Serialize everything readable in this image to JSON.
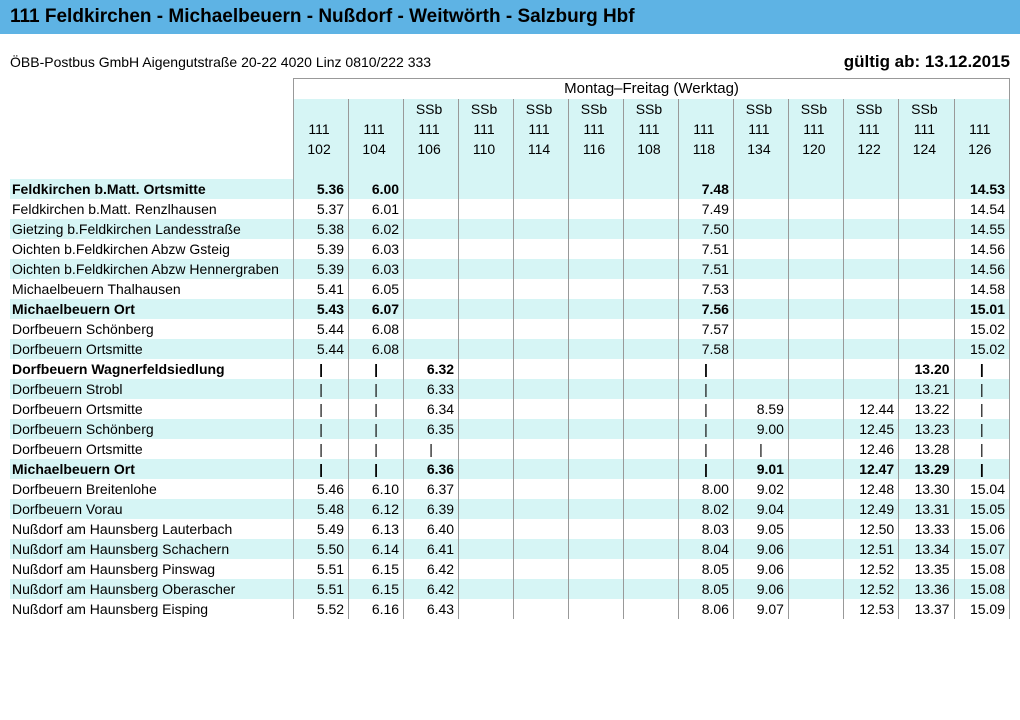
{
  "colors": {
    "header_bar": "#5eb3e4",
    "row_stripe": "#d6f5f5",
    "border": "#999999",
    "background": "#ffffff"
  },
  "header": {
    "title": "111 Feldkirchen - Michaelbeuern - Nußdorf - Weitwörth - Salzburg Hbf",
    "operator": "ÖBB-Postbus GmbH Aigengutstraße 20-22 4020 Linz 0810/222 333",
    "valid_from": "gültig ab: 13.12.2015",
    "days": "Montag–Freitag (Werktag)"
  },
  "columns": {
    "ssb": [
      "",
      "",
      "SSb",
      "SSb",
      "SSb",
      "SSb",
      "SSb",
      "",
      "SSb",
      "SSb",
      "SSb",
      "SSb",
      ""
    ],
    "route": [
      "111",
      "111",
      "111",
      "111",
      "111",
      "111",
      "111",
      "111",
      "111",
      "111",
      "111",
      "111",
      "111"
    ],
    "course": [
      "102",
      "104",
      "106",
      "110",
      "114",
      "116",
      "108",
      "118",
      "134",
      "120",
      "122",
      "124",
      "126"
    ]
  },
  "stops": [
    {
      "name": "Feldkirchen b.Matt. Ortsmitte",
      "bold": true,
      "t": [
        "5.36",
        "6.00",
        "",
        "",
        "",
        "",
        "",
        "7.48",
        "",
        "",
        "",
        "",
        "14.53"
      ]
    },
    {
      "name": "Feldkirchen b.Matt. Renzlhausen",
      "bold": false,
      "t": [
        "5.37",
        "6.01",
        "",
        "",
        "",
        "",
        "",
        "7.49",
        "",
        "",
        "",
        "",
        "14.54"
      ]
    },
    {
      "name": "Gietzing b.Feldkirchen Landesstraße",
      "bold": false,
      "t": [
        "5.38",
        "6.02",
        "",
        "",
        "",
        "",
        "",
        "7.50",
        "",
        "",
        "",
        "",
        "14.55"
      ]
    },
    {
      "name": "Oichten b.Feldkirchen Abzw Gsteig",
      "bold": false,
      "t": [
        "5.39",
        "6.03",
        "",
        "",
        "",
        "",
        "",
        "7.51",
        "",
        "",
        "",
        "",
        "14.56"
      ]
    },
    {
      "name": "Oichten b.Feldkirchen Abzw Hennergraben",
      "bold": false,
      "t": [
        "5.39",
        "6.03",
        "",
        "",
        "",
        "",
        "",
        "7.51",
        "",
        "",
        "",
        "",
        "14.56"
      ]
    },
    {
      "name": "Michaelbeuern Thalhausen",
      "bold": false,
      "t": [
        "5.41",
        "6.05",
        "",
        "",
        "",
        "",
        "",
        "7.53",
        "",
        "",
        "",
        "",
        "14.58"
      ]
    },
    {
      "name": "Michaelbeuern Ort",
      "bold": true,
      "t": [
        "5.43",
        "6.07",
        "",
        "",
        "",
        "",
        "",
        "7.56",
        "",
        "",
        "",
        "",
        "15.01"
      ]
    },
    {
      "name": "Dorfbeuern Schönberg",
      "bold": false,
      "t": [
        "5.44",
        "6.08",
        "",
        "",
        "",
        "",
        "",
        "7.57",
        "",
        "",
        "",
        "",
        "15.02"
      ]
    },
    {
      "name": "Dorfbeuern Ortsmitte",
      "bold": false,
      "t": [
        "5.44",
        "6.08",
        "",
        "",
        "",
        "",
        "",
        "7.58",
        "",
        "",
        "",
        "",
        "15.02"
      ]
    },
    {
      "name": "Dorfbeuern Wagnerfeldsiedlung",
      "bold": true,
      "t": [
        "|",
        "|",
        "6.32",
        "",
        "",
        "",
        "",
        "|",
        "",
        "",
        "",
        "13.20",
        "|"
      ]
    },
    {
      "name": "Dorfbeuern Strobl",
      "bold": false,
      "t": [
        "|",
        "|",
        "6.33",
        "",
        "",
        "",
        "",
        "|",
        "",
        "",
        "",
        "13.21",
        "|"
      ]
    },
    {
      "name": "Dorfbeuern Ortsmitte",
      "bold": false,
      "t": [
        "|",
        "|",
        "6.34",
        "",
        "",
        "",
        "",
        "|",
        "8.59",
        "",
        "12.44",
        "13.22",
        "|"
      ]
    },
    {
      "name": "Dorfbeuern Schönberg",
      "bold": false,
      "t": [
        "|",
        "|",
        "6.35",
        "",
        "",
        "",
        "",
        "|",
        "9.00",
        "",
        "12.45",
        "13.23",
        "|"
      ]
    },
    {
      "name": "Dorfbeuern Ortsmitte",
      "bold": false,
      "t": [
        "|",
        "|",
        "|",
        "",
        "",
        "",
        "",
        "|",
        "|",
        "",
        "12.46",
        "13.28",
        "|"
      ]
    },
    {
      "name": "Michaelbeuern Ort",
      "bold": true,
      "t": [
        "|",
        "|",
        "6.36",
        "",
        "",
        "",
        "",
        "|",
        "9.01",
        "",
        "12.47",
        "13.29",
        "|"
      ]
    },
    {
      "name": "Dorfbeuern Breitenlohe",
      "bold": false,
      "t": [
        "5.46",
        "6.10",
        "6.37",
        "",
        "",
        "",
        "",
        "8.00",
        "9.02",
        "",
        "12.48",
        "13.30",
        "15.04"
      ]
    },
    {
      "name": "Dorfbeuern Vorau",
      "bold": false,
      "t": [
        "5.48",
        "6.12",
        "6.39",
        "",
        "",
        "",
        "",
        "8.02",
        "9.04",
        "",
        "12.49",
        "13.31",
        "15.05"
      ]
    },
    {
      "name": "Nußdorf am Haunsberg Lauterbach",
      "bold": false,
      "t": [
        "5.49",
        "6.13",
        "6.40",
        "",
        "",
        "",
        "",
        "8.03",
        "9.05",
        "",
        "12.50",
        "13.33",
        "15.06"
      ]
    },
    {
      "name": "Nußdorf am Haunsberg Schachern",
      "bold": false,
      "t": [
        "5.50",
        "6.14",
        "6.41",
        "",
        "",
        "",
        "",
        "8.04",
        "9.06",
        "",
        "12.51",
        "13.34",
        "15.07"
      ]
    },
    {
      "name": "Nußdorf am Haunsberg Pinswag",
      "bold": false,
      "t": [
        "5.51",
        "6.15",
        "6.42",
        "",
        "",
        "",
        "",
        "8.05",
        "9.06",
        "",
        "12.52",
        "13.35",
        "15.08"
      ]
    },
    {
      "name": "Nußdorf am Haunsberg Oberascher",
      "bold": false,
      "t": [
        "5.51",
        "6.15",
        "6.42",
        "",
        "",
        "",
        "",
        "8.05",
        "9.06",
        "",
        "12.52",
        "13.36",
        "15.08"
      ]
    },
    {
      "name": "Nußdorf am Haunsberg Eisping",
      "bold": false,
      "t": [
        "5.52",
        "6.16",
        "6.43",
        "",
        "",
        "",
        "",
        "8.06",
        "9.07",
        "",
        "12.53",
        "13.37",
        "15.09"
      ]
    }
  ]
}
